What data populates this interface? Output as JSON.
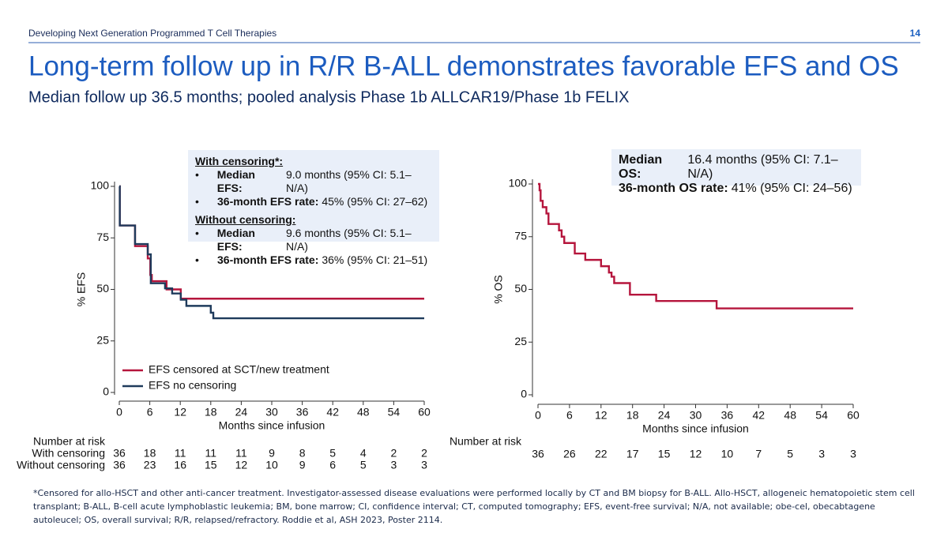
{
  "header": {
    "section": "Developing Next Generation Programmed T Cell Therapies",
    "page": "14"
  },
  "title": "Long-term follow up in R/R B-ALL demonstrates favorable EFS and OS",
  "subtitle": "Median follow up 36.5 months; pooled analysis Phase 1b ALLCAR19/Phase 1b FELIX",
  "chart_data": [
    {
      "type": "step",
      "ylabel": "% EFS",
      "xlabel": "Months since infusion",
      "xlim": [
        0,
        60
      ],
      "ylim": [
        0,
        100
      ],
      "xticks": [
        0,
        6,
        12,
        18,
        24,
        30,
        36,
        42,
        48,
        54,
        60
      ],
      "yticks": [
        0,
        25,
        50,
        75,
        100
      ],
      "legend": "lower left",
      "series": [
        {
          "name": "EFS censored at SCT/new treatment",
          "color": "#b5153c",
          "x": [
            0,
            0.1,
            3.1,
            5.6,
            6.1,
            6.4,
            9.3,
            12.1,
            60
          ],
          "values": [
            100,
            81,
            71,
            65,
            57,
            54,
            50,
            45.5,
            45.5
          ]
        },
        {
          "name": "EFS no censoring",
          "color": "#1f3b5c",
          "x": [
            0,
            0.1,
            3.1,
            5.6,
            6.2,
            9,
            10.4,
            12.1,
            13.2,
            18,
            18.5,
            60
          ],
          "values": [
            100,
            81,
            72,
            67,
            53,
            50.5,
            48,
            45,
            42,
            38.7,
            36,
            36
          ]
        }
      ],
      "box": [
        {
          "heading": "With censoring*:",
          "items": [
            {
              "label": "Median EFS:",
              "text": "9.0 months (95% CI: 5.1–N/A)"
            },
            {
              "label": "36-month EFS rate:",
              "text": "45% (95% CI: 27–62)"
            }
          ]
        },
        {
          "heading": "Without censoring:",
          "items": [
            {
              "label": "Median EFS:",
              "text": "9.6 months (95% CI: 5.1–N/A)"
            },
            {
              "label": "36-month EFS rate:",
              "text": "36% (95% CI: 21–51)"
            }
          ]
        }
      ],
      "risk_table": {
        "title": "Number at risk",
        "rows": [
          {
            "label": "With censoring",
            "values": [
              36,
              18,
              11,
              11,
              11,
              9,
              8,
              5,
              4,
              2,
              2
            ]
          },
          {
            "label": "Without censoring",
            "values": [
              36,
              23,
              16,
              15,
              12,
              10,
              9,
              6,
              5,
              3,
              3
            ]
          }
        ]
      }
    },
    {
      "type": "step",
      "ylabel": "% OS",
      "xlabel": "Months since infusion",
      "xlim": [
        0,
        60
      ],
      "ylim": [
        0,
        100
      ],
      "xticks": [
        0,
        6,
        12,
        18,
        24,
        30,
        36,
        42,
        48,
        54,
        60
      ],
      "yticks": [
        0,
        25,
        50,
        75,
        100
      ],
      "series": [
        {
          "color": "#b5153c",
          "x": [
            0,
            0.3,
            0.5,
            0.9,
            1.6,
            2,
            4,
            4.5,
            5,
            7,
            9,
            12,
            13.5,
            14,
            14.5,
            17.5,
            22.5,
            34,
            60
          ],
          "values": [
            100,
            97,
            92,
            89,
            86,
            81,
            78,
            75,
            72,
            67,
            64,
            61,
            58,
            56,
            53,
            47.5,
            44.5,
            41,
            41
          ]
        }
      ],
      "box": [
        {
          "items": [
            {
              "label": "Median OS:",
              "text": "16.4 months (95% CI: 7.1–N/A)"
            },
            {
              "label": "36-month OS rate:",
              "text": "41% (95% CI: 24–56)"
            }
          ]
        }
      ],
      "risk_table": {
        "title": "Number at risk",
        "rows": [
          {
            "values": [
              36,
              26,
              22,
              17,
              15,
              12,
              10,
              7,
              5,
              3,
              3
            ]
          }
        ]
      }
    }
  ],
  "footnote": "*Censored for allo-HSCT and other anti-cancer treatment. Investigator-assessed disease evaluations were performed locally by CT and BM biopsy for B-ALL. Allo-HSCT, allogeneic hematopoietic stem cell transplant; B-ALL, B-cell acute lymphoblastic leukemia; BM, bone marrow; CI, confidence interval; CT, computed tomography; EFS, event-free survival; N/A, not available; obe-cel, obecabtagene autoleucel; OS, overall survival; R/R, relapsed/refractory. Roddie et al, ASH 2023, Poster 2114."
}
